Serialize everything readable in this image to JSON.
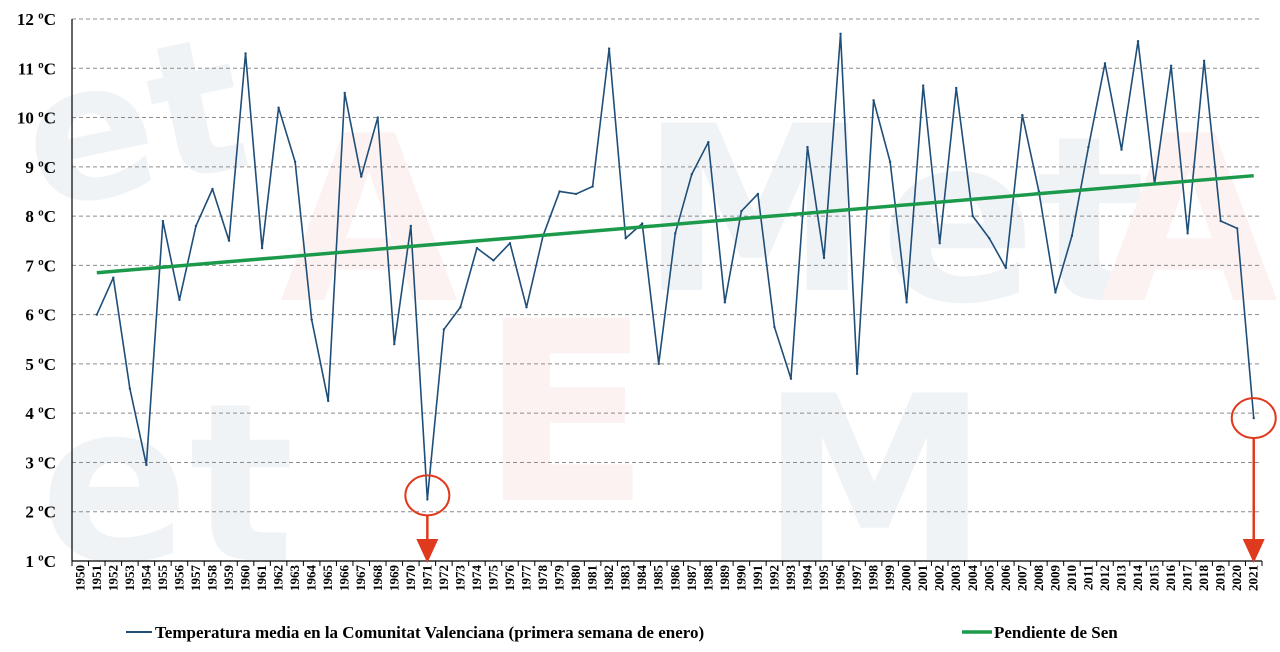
{
  "chart_data": {
    "type": "line",
    "title": "",
    "xlabel": "",
    "ylabel": "",
    "ylim": [
      1,
      12
    ],
    "y_unit": "ºC",
    "y_ticks": [
      "1 ºC",
      "2 ºC",
      "3 ºC",
      "4 ºC",
      "5 ºC",
      "6 ºC",
      "7 ºC",
      "8 ºC",
      "9 ºC",
      "10 ºC",
      "11 ºC",
      "12 ºC"
    ],
    "x_categories": [
      "1950",
      "1951",
      "1952",
      "1953",
      "1954",
      "1955",
      "1956",
      "1957",
      "1958",
      "1959",
      "1960",
      "1961",
      "1962",
      "1963",
      "1964",
      "1965",
      "1966",
      "1967",
      "1968",
      "1969",
      "1970",
      "1971",
      "1972",
      "1973",
      "1974",
      "1975",
      "1976",
      "1977",
      "1978",
      "1979",
      "1980",
      "1981",
      "1982",
      "1983",
      "1984",
      "1985",
      "1986",
      "1987",
      "1988",
      "1989",
      "1990",
      "1991",
      "1992",
      "1993",
      "1994",
      "1995",
      "1996",
      "1997",
      "1998",
      "1999",
      "2000",
      "2001",
      "2002",
      "2003",
      "2004",
      "2005",
      "2006",
      "2007",
      "2008",
      "2009",
      "2010",
      "2011",
      "2012",
      "2013",
      "2014",
      "2015",
      "2016",
      "2017",
      "2018",
      "2019",
      "2020",
      "2021"
    ],
    "grid": "horizontal dashed",
    "legend_position": "bottom",
    "series": [
      {
        "name": "Temperatura media en la Comunitat Valenciana (primera semana de enero)",
        "color": "#1f4e79",
        "x": [
          "1951",
          "1952",
          "1953",
          "1954",
          "1955",
          "1956",
          "1957",
          "1958",
          "1959",
          "1960",
          "1961",
          "1962",
          "1963",
          "1964",
          "1965",
          "1966",
          "1967",
          "1968",
          "1969",
          "1970",
          "1971",
          "1972",
          "1973",
          "1974",
          "1975",
          "1976",
          "1977",
          "1978",
          "1979",
          "1980",
          "1981",
          "1982",
          "1983",
          "1984",
          "1985",
          "1986",
          "1987",
          "1988",
          "1989",
          "1990",
          "1991",
          "1992",
          "1993",
          "1994",
          "1995",
          "1996",
          "1997",
          "1998",
          "1999",
          "2000",
          "2001",
          "2002",
          "2003",
          "2004",
          "2005",
          "2006",
          "2007",
          "2008",
          "2009",
          "2010",
          "2011",
          "2012",
          "2013",
          "2014",
          "2015",
          "2016",
          "2017",
          "2018",
          "2019",
          "2020",
          "2021"
        ],
        "values": [
          6.0,
          6.75,
          4.5,
          2.95,
          7.9,
          6.3,
          7.8,
          8.55,
          7.5,
          11.3,
          7.35,
          10.2,
          9.1,
          5.9,
          4.25,
          10.5,
          8.8,
          10.0,
          5.4,
          7.8,
          2.25,
          5.7,
          6.15,
          7.35,
          7.1,
          7.45,
          6.15,
          7.6,
          8.5,
          8.45,
          8.6,
          11.4,
          7.55,
          7.85,
          5.0,
          7.65,
          8.85,
          9.5,
          6.25,
          8.1,
          8.45,
          5.75,
          4.7,
          9.4,
          7.15,
          11.7,
          4.8,
          10.35,
          9.1,
          6.25,
          10.65,
          7.45,
          10.6,
          8.0,
          7.55,
          6.95,
          10.05,
          8.5,
          6.45,
          7.6,
          9.4,
          11.1,
          9.35,
          11.55,
          8.65,
          11.05,
          7.65,
          11.15,
          7.9,
          7.75,
          3.9
        ]
      },
      {
        "name": "Pendiente de Sen",
        "color": "#1a9a4a",
        "x": [
          "1951",
          "2021"
        ],
        "values": [
          6.85,
          8.82
        ]
      }
    ],
    "highlights": [
      "1971",
      "2021"
    ]
  }
}
